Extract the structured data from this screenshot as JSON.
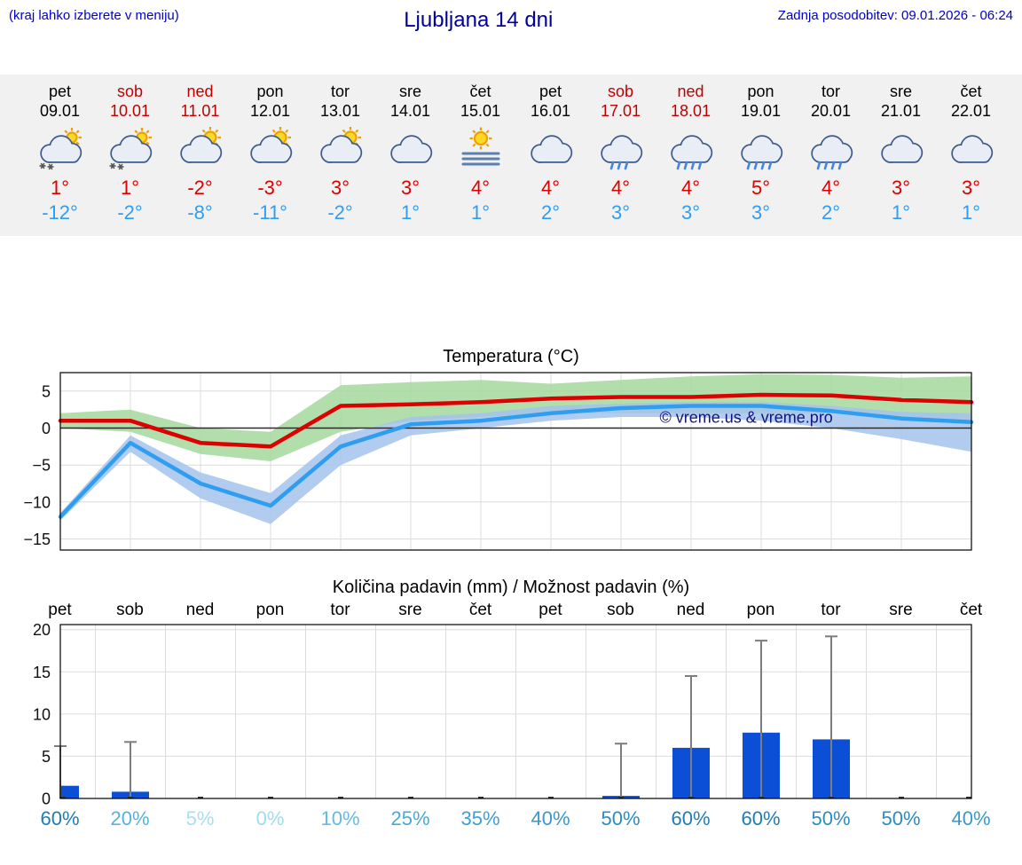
{
  "header": {
    "note": "(kraj lahko izberete v meniju)",
    "title": "Ljubljana 14 dni",
    "updated": "Zadnja posodobitev: 09.01.2026 - 06:24"
  },
  "colors": {
    "max_temp": "#dd0000",
    "min_temp": "#2f9df0",
    "weekend": "#c00000",
    "bar": "#0b4fd6",
    "band_max": "#a5d89e",
    "band_min": "#a3c3ec",
    "watermark": "#14147e",
    "accent_blue": "#0000cc"
  },
  "forecast": {
    "days": [
      {
        "name": "pet",
        "date": "09.01",
        "weekend": false,
        "icon": "sun-cloud-snow",
        "tmax": "1°",
        "tmin": "-12°"
      },
      {
        "name": "sob",
        "date": "10.01",
        "weekend": true,
        "icon": "sun-cloud-snow",
        "tmax": "1°",
        "tmin": "-2°"
      },
      {
        "name": "ned",
        "date": "11.01",
        "weekend": true,
        "icon": "sun-cloud",
        "tmax": "-2°",
        "tmin": "-8°"
      },
      {
        "name": "pon",
        "date": "12.01",
        "weekend": false,
        "icon": "sun-cloud",
        "tmax": "-3°",
        "tmin": "-11°"
      },
      {
        "name": "tor",
        "date": "13.01",
        "weekend": false,
        "icon": "sun-cloud",
        "tmax": "3°",
        "tmin": "-2°"
      },
      {
        "name": "sre",
        "date": "14.01",
        "weekend": false,
        "icon": "cloud",
        "tmax": "3°",
        "tmin": "1°"
      },
      {
        "name": "čet",
        "date": "15.01",
        "weekend": false,
        "icon": "sun-fog",
        "tmax": "4°",
        "tmin": "1°"
      },
      {
        "name": "pet",
        "date": "16.01",
        "weekend": false,
        "icon": "cloud",
        "tmax": "4°",
        "tmin": "2°"
      },
      {
        "name": "sob",
        "date": "17.01",
        "weekend": true,
        "icon": "cloud-rain",
        "tmax": "4°",
        "tmin": "3°"
      },
      {
        "name": "ned",
        "date": "18.01",
        "weekend": true,
        "icon": "cloud-heavy-rain",
        "tmax": "4°",
        "tmin": "3°"
      },
      {
        "name": "pon",
        "date": "19.01",
        "weekend": false,
        "icon": "cloud-heavy-rain",
        "tmax": "5°",
        "tmin": "3°"
      },
      {
        "name": "tor",
        "date": "20.01",
        "weekend": false,
        "icon": "cloud-heavy-rain",
        "tmax": "4°",
        "tmin": "2°"
      },
      {
        "name": "sre",
        "date": "21.01",
        "weekend": false,
        "icon": "cloud",
        "tmax": "3°",
        "tmin": "1°"
      },
      {
        "name": "čet",
        "date": "22.01",
        "weekend": false,
        "icon": "cloud",
        "tmax": "3°",
        "tmin": "1°"
      }
    ]
  },
  "chart_data": [
    {
      "type": "line",
      "title": "Temperatura (°C)",
      "x": [
        "pet",
        "sob",
        "ned",
        "pon",
        "tor",
        "sre",
        "čet",
        "pet",
        "sob",
        "ned",
        "pon",
        "tor",
        "sre",
        "čet"
      ],
      "ylim": [
        -16.5,
        7.5
      ],
      "yticks": [
        5,
        0,
        -5,
        -10,
        -15
      ],
      "watermark": "© vreme.us & vreme.pro",
      "series": [
        {
          "name": "max_temp",
          "color": "#dd0000",
          "values": [
            1,
            1,
            -2,
            -2.5,
            3,
            3.2,
            3.5,
            4,
            4.2,
            4.2,
            4.5,
            4.4,
            3.8,
            3.5
          ]
        },
        {
          "name": "min_temp",
          "color": "#2f9df0",
          "values": [
            -12,
            -2,
            -7.5,
            -10.5,
            -2.5,
            0.5,
            1,
            2,
            2.7,
            3,
            3,
            2.3,
            1.3,
            0.8
          ]
        }
      ],
      "bands": [
        {
          "name": "max-range",
          "color": "#a5d89e",
          "upper": [
            2,
            2.5,
            0,
            -0.5,
            5.8,
            6.2,
            6.5,
            6,
            6.5,
            7,
            7.3,
            7.2,
            6.8,
            7
          ],
          "lower": [
            0,
            -0.5,
            -3.5,
            -4.5,
            -0.5,
            1,
            1.5,
            2,
            2,
            2,
            2,
            2,
            1.5,
            1
          ]
        },
        {
          "name": "min-range",
          "color": "#a3c3ec",
          "upper": [
            -11.5,
            -1,
            -6,
            -8.8,
            -1,
            1.5,
            2,
            3,
            3.3,
            3.5,
            3.5,
            3,
            2.2,
            2
          ],
          "lower": [
            -12.5,
            -3.2,
            -9.5,
            -13,
            -5,
            -1,
            0,
            1,
            1.5,
            1.5,
            1,
            0,
            -1.5,
            -3.2
          ]
        }
      ]
    },
    {
      "type": "bar",
      "title": "Količina padavin (mm) / Možnost padavin (%)",
      "categories": [
        "pet",
        "sob",
        "ned",
        "pon",
        "tor",
        "sre",
        "čet",
        "pet",
        "sob",
        "ned",
        "pon",
        "tor",
        "sre",
        "čet"
      ],
      "ylim": [
        0,
        20.6
      ],
      "yticks": [
        0,
        5,
        10,
        15,
        20
      ],
      "bar_values_mm": [
        1.5,
        0.8,
        0,
        0,
        0,
        0,
        0,
        0,
        0.3,
        6,
        7.8,
        7,
        0,
        0
      ],
      "whisker_max_mm": [
        6.2,
        6.7,
        0,
        0,
        0,
        0,
        0,
        0,
        6.5,
        14.5,
        18.7,
        19.2,
        0,
        0
      ],
      "probability_pct": [
        60,
        20,
        5,
        0,
        10,
        25,
        35,
        40,
        50,
        60,
        60,
        50,
        50,
        40
      ],
      "probability_colors": [
        "#1f7cb4",
        "#56b2dc",
        "#a6dff0",
        "#9edcee",
        "#63bce2",
        "#49a8d6",
        "#3fa0d0",
        "#389aca",
        "#2b8cbe",
        "#1f7cb4",
        "#1f7cb4",
        "#2b8cbe",
        "#2b8cbe",
        "#389aca"
      ]
    }
  ]
}
